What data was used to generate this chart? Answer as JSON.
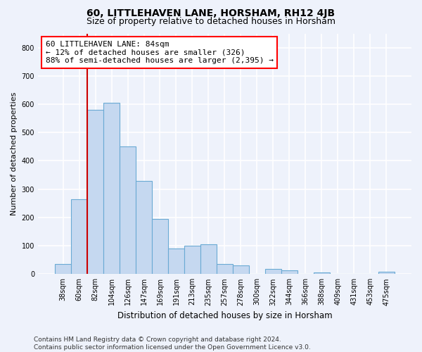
{
  "title": "60, LITTLEHAVEN LANE, HORSHAM, RH12 4JB",
  "subtitle": "Size of property relative to detached houses in Horsham",
  "xlabel": "Distribution of detached houses by size in Horsham",
  "ylabel": "Number of detached properties",
  "footer": "Contains HM Land Registry data © Crown copyright and database right 2024.\nContains public sector information licensed under the Open Government Licence v3.0.",
  "categories": [
    "38sqm",
    "60sqm",
    "82sqm",
    "104sqm",
    "126sqm",
    "147sqm",
    "169sqm",
    "191sqm",
    "213sqm",
    "235sqm",
    "257sqm",
    "278sqm",
    "300sqm",
    "322sqm",
    "344sqm",
    "366sqm",
    "388sqm",
    "409sqm",
    "431sqm",
    "453sqm",
    "475sqm"
  ],
  "values": [
    35,
    265,
    580,
    605,
    450,
    330,
    195,
    90,
    100,
    105,
    35,
    30,
    0,
    17,
    12,
    0,
    5,
    0,
    0,
    0,
    8
  ],
  "bar_color": "#c5d8f0",
  "bar_edge_color": "#6aaad4",
  "vline_x": 2,
  "vline_color": "#cc0000",
  "annotation_text": "60 LITTLEHAVEN LANE: 84sqm\n← 12% of detached houses are smaller (326)\n88% of semi-detached houses are larger (2,395) →",
  "annotation_box_color": "white",
  "annotation_box_edge": "red",
  "ylim": [
    0,
    850
  ],
  "yticks": [
    0,
    100,
    200,
    300,
    400,
    500,
    600,
    700,
    800
  ],
  "background_color": "#eef2fb",
  "plot_bg_color": "#eef2fb",
  "grid_color": "white",
  "title_fontsize": 10,
  "subtitle_fontsize": 9,
  "tick_fontsize": 7,
  "ylabel_fontsize": 8,
  "xlabel_fontsize": 8.5,
  "footer_fontsize": 6.5,
  "annotation_fontsize": 8
}
